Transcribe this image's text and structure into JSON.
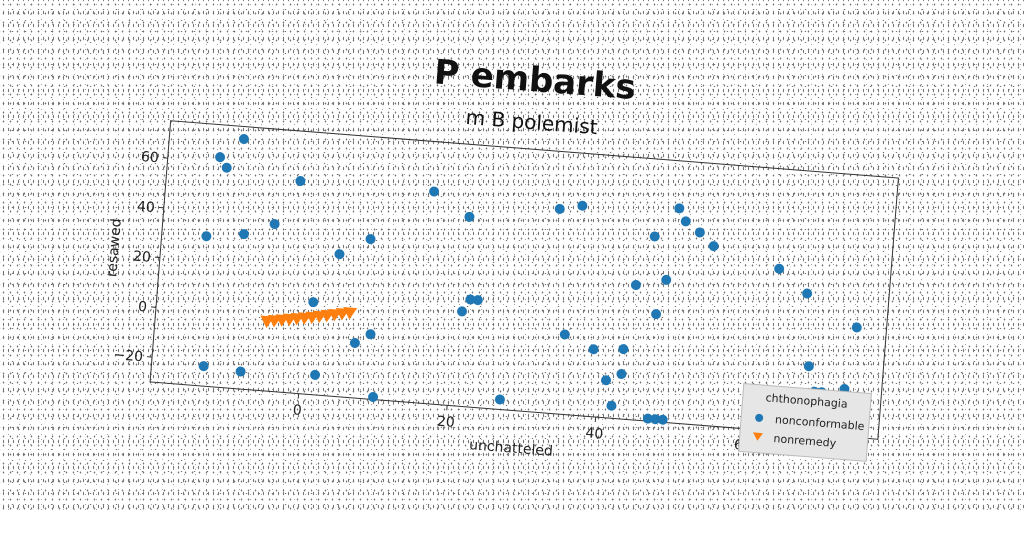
{
  "chart_data": {
    "type": "scatter",
    "title": "P  embarks",
    "subtitle": "m B polemist",
    "xlabel": "unchatteled",
    "ylabel": "resawed",
    "xlim": [
      -20,
      78
    ],
    "ylim": [
      -30,
      75
    ],
    "xticks": [
      0,
      20,
      40,
      60
    ],
    "yticks": [
      -20,
      0,
      20,
      40,
      60
    ],
    "grid": false,
    "legend": {
      "title": "chthonophagia",
      "placement": "bottom-right",
      "entries": [
        "nonconformable",
        "nonremedy"
      ]
    },
    "series": [
      {
        "name": "nonconformable",
        "marker": "circle",
        "color": "#1f77b4",
        "points": [
          [
            -13,
            62
          ],
          [
            -12,
            58
          ],
          [
            -10,
            70
          ],
          [
            -14,
            30
          ],
          [
            -9,
            32
          ],
          [
            -5,
            37
          ],
          [
            -2,
            55
          ],
          [
            1,
            7
          ],
          [
            4,
            27
          ],
          [
            8,
            34
          ],
          [
            9,
            -4
          ],
          [
            7,
            -8
          ],
          [
            -13,
            -22
          ],
          [
            -8,
            -23
          ],
          [
            2,
            -22
          ],
          [
            10,
            -29
          ],
          [
            16,
            55
          ],
          [
            21,
            46
          ],
          [
            22,
            13
          ],
          [
            23,
            13
          ],
          [
            21,
            8
          ],
          [
            27,
            -26
          ],
          [
            33,
            52
          ],
          [
            36,
            54
          ],
          [
            35,
            2
          ],
          [
            39,
            -3
          ],
          [
            41,
            -15
          ],
          [
            42,
            -25
          ],
          [
            43,
            -12
          ],
          [
            43,
            -2
          ],
          [
            44,
            24
          ],
          [
            46,
            44
          ],
          [
            47,
            13
          ],
          [
            48,
            27
          ],
          [
            49,
            56
          ],
          [
            50,
            51
          ],
          [
            52,
            47
          ],
          [
            54,
            42
          ],
          [
            47,
            -29
          ],
          [
            48,
            -29
          ],
          [
            49,
            -29
          ],
          [
            63,
            35
          ],
          [
            67,
            26
          ],
          [
            68,
            -3
          ],
          [
            69,
            -13
          ],
          [
            70,
            -13
          ],
          [
            73,
            -11
          ],
          [
            74,
            14
          ]
        ]
      },
      {
        "name": "nonremedy",
        "marker": "triangle-down",
        "color": "#ff7f0e",
        "points": [
          [
            -5,
            -2
          ],
          [
            -4,
            -1.5
          ],
          [
            -3,
            -1
          ],
          [
            -2,
            -0.5
          ],
          [
            -1,
            0
          ],
          [
            0,
            0.5
          ],
          [
            1,
            1
          ],
          [
            2,
            1.6
          ],
          [
            3,
            2.2
          ],
          [
            4,
            2.8
          ],
          [
            5,
            3.4
          ],
          [
            6,
            4
          ]
        ]
      }
    ]
  }
}
